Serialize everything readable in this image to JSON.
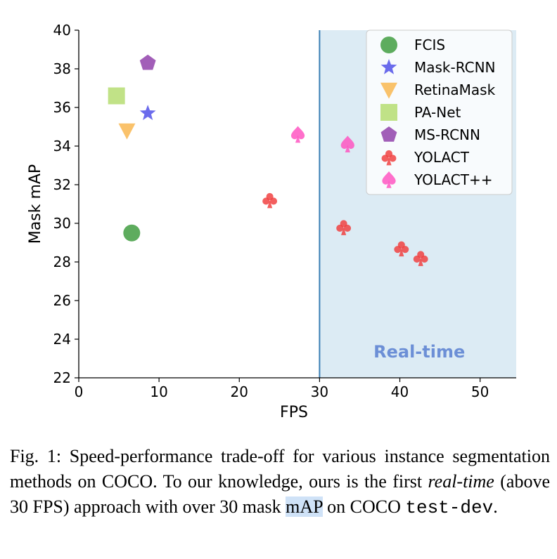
{
  "chart_data": {
    "type": "scatter",
    "xlabel": "FPS",
    "ylabel": "Mask mAP",
    "xlim": [
      0,
      54.5
    ],
    "ylim": [
      22,
      40
    ],
    "xticks": [
      "0",
      "10",
      "20",
      "30",
      "40",
      "50"
    ],
    "yticks": [
      "22",
      "24",
      "26",
      "28",
      "30",
      "32",
      "34",
      "36",
      "38",
      "40"
    ],
    "grid": false,
    "legend_position": "top-right",
    "realtime_threshold": 30,
    "realtime_label": "Real-time",
    "colors": {
      "FCIS": "#3a9a3a",
      "Mask-RCNN": "#4a4ae8",
      "RetinaMask": "#f9b44a",
      "PA-Net": "#b3dc6c",
      "MS-RCNN": "#8e3aa8",
      "YOLACT": "#f03a3a",
      "YOLACT++": "#ff4fc0",
      "region": "#dcebf4",
      "threshold_line": "#3a7fb4"
    },
    "series": [
      {
        "name": "FCIS",
        "marker": "circle",
        "points": [
          [
            6.6,
            29.5
          ]
        ]
      },
      {
        "name": "Mask-RCNN",
        "marker": "star",
        "points": [
          [
            8.6,
            35.7
          ]
        ]
      },
      {
        "name": "RetinaMask",
        "marker": "triangle-down",
        "points": [
          [
            6.0,
            34.8
          ]
        ]
      },
      {
        "name": "PA-Net",
        "marker": "square",
        "points": [
          [
            4.7,
            36.6
          ]
        ]
      },
      {
        "name": "MS-RCNN",
        "marker": "pentagon",
        "points": [
          [
            8.6,
            38.3
          ]
        ]
      },
      {
        "name": "YOLACT",
        "marker": "club",
        "points": [
          [
            23.8,
            31.2
          ],
          [
            33.0,
            29.8
          ],
          [
            40.2,
            28.7
          ],
          [
            42.6,
            28.2
          ]
        ]
      },
      {
        "name": "YOLACT++",
        "marker": "spade",
        "points": [
          [
            27.3,
            34.6
          ],
          [
            33.5,
            34.1
          ]
        ]
      }
    ]
  },
  "caption": {
    "prefix": "Fig. 1: Speed-performance trade-off for various instance segmentation methods on COCO. To our knowledge, ours is the first ",
    "italic": "real-time",
    "middle": " (above 30 FPS) approach with over 30 mask ",
    "highlight": "mAP",
    "after": " on COCO ",
    "mono": "test-dev",
    "end": "."
  }
}
